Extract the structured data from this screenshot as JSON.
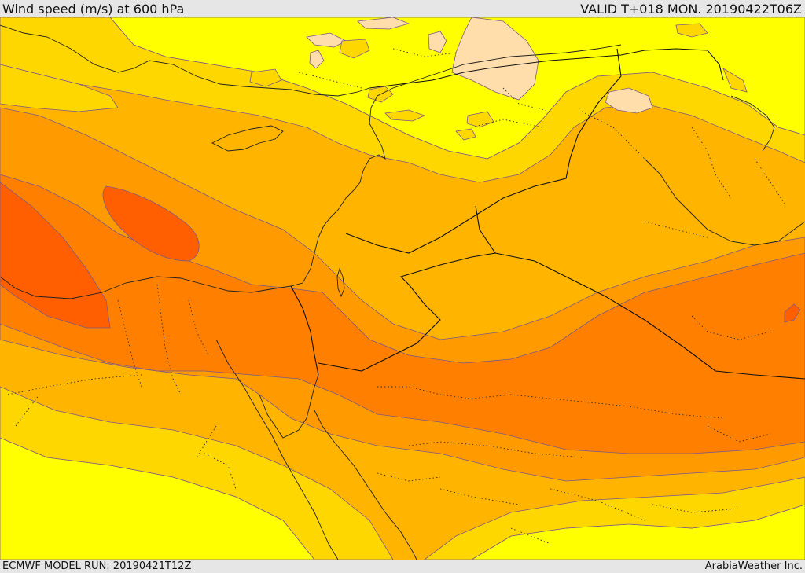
{
  "header": {
    "title": "Wind speed (m/s) at 600 hPa",
    "valid": "VALID T+018 MON. 20190422T06Z"
  },
  "footer": {
    "model_run": "ECMWF MODEL RUN: 20190421T12Z",
    "credit": "ArabiaWeather Inc."
  },
  "map": {
    "colors": {
      "band_light": "#ffff00",
      "band_gold": "#ffd700",
      "band_amber": "#ffb400",
      "band_orange": "#ff9a00",
      "band_dark_orange": "#ff7f00",
      "band_red_orange": "#ff5f00",
      "calm_patch": "#ffdeab"
    }
  }
}
